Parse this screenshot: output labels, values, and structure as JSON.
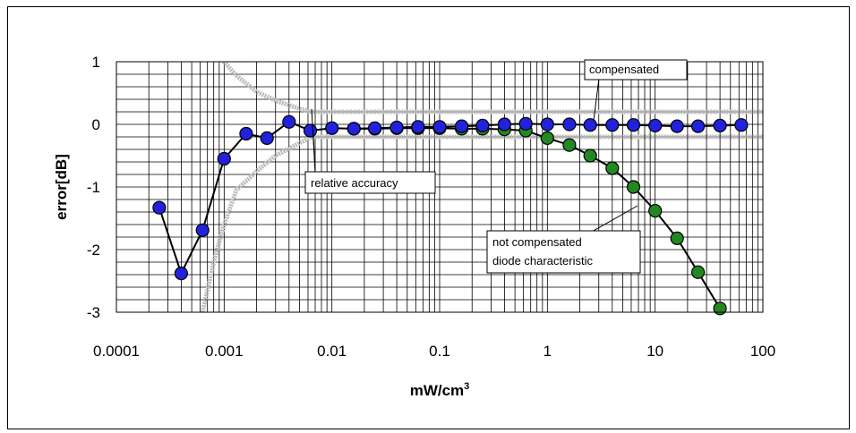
{
  "chart_data": {
    "type": "scatter",
    "x_scale": "log",
    "xlim": [
      0.0001,
      100
    ],
    "ylim": [
      -3,
      1
    ],
    "grid": true,
    "xlabel": "mW/cm",
    "xlabel_sup": "3",
    "ylabel": "error[dB]",
    "x_ticks": [
      {
        "value": 0.0001,
        "label": "0.0001"
      },
      {
        "value": 0.001,
        "label": "0.001"
      },
      {
        "value": 0.01,
        "label": "0.01"
      },
      {
        "value": 0.1,
        "label": "0.1"
      },
      {
        "value": 1,
        "label": "1"
      },
      {
        "value": 10,
        "label": "10"
      },
      {
        "value": 100,
        "label": "100"
      }
    ],
    "y_ticks": [
      {
        "value": 1,
        "label": "1"
      },
      {
        "value": 0,
        "label": "0"
      },
      {
        "value": -1,
        "label": "-1"
      },
      {
        "value": -2,
        "label": "-2"
      },
      {
        "value": -3,
        "label": "-3"
      }
    ],
    "annotations": {
      "compensated": "compensated",
      "relative_accuracy": "relative accuracy",
      "not_compensated_line1": "not compensated",
      "not_compensated_line2": "diode characteristic"
    },
    "series": [
      {
        "color": "#2222dd",
        "style": "line-marker",
        "points": [
          [
            0.00025,
            -1.33
          ],
          [
            0.0004,
            -2.38
          ],
          [
            0.00063,
            -1.69
          ],
          [
            0.001,
            -0.55
          ],
          [
            0.0016,
            -0.15
          ],
          [
            0.0025,
            -0.22
          ],
          [
            0.004,
            0.04
          ],
          [
            0.0063,
            -0.1
          ],
          [
            0.01,
            -0.06
          ],
          [
            0.016,
            -0.07
          ],
          [
            0.025,
            -0.06
          ],
          [
            0.04,
            -0.05
          ],
          [
            0.063,
            -0.04
          ],
          [
            0.1,
            -0.04
          ],
          [
            0.16,
            -0.03
          ],
          [
            0.25,
            -0.02
          ],
          [
            0.4,
            0.0
          ],
          [
            0.63,
            0.01
          ],
          [
            1,
            0.0
          ],
          [
            1.6,
            0.0
          ],
          [
            2.5,
            -0.01
          ],
          [
            4,
            -0.01
          ],
          [
            6.3,
            -0.01
          ],
          [
            10,
            -0.02
          ],
          [
            16,
            -0.03
          ],
          [
            25,
            -0.03
          ],
          [
            40,
            -0.02
          ],
          [
            63,
            -0.01
          ]
        ]
      },
      {
        "color": "#228822",
        "style": "line-marker",
        "points": [
          [
            0.016,
            -0.07
          ],
          [
            0.025,
            -0.07
          ],
          [
            0.04,
            -0.06
          ],
          [
            0.063,
            -0.06
          ],
          [
            0.1,
            -0.06
          ],
          [
            0.16,
            -0.07
          ],
          [
            0.25,
            -0.07
          ],
          [
            0.4,
            -0.08
          ],
          [
            0.63,
            -0.1
          ],
          [
            1,
            -0.22
          ],
          [
            1.6,
            -0.33
          ],
          [
            2.5,
            -0.5
          ],
          [
            4,
            -0.7
          ],
          [
            6.3,
            -1.0
          ],
          [
            10,
            -1.38
          ],
          [
            16,
            -1.82
          ],
          [
            25,
            -2.36
          ],
          [
            40,
            -2.94
          ]
        ]
      },
      {
        "color": "#bbbbbb",
        "style": "thick-line",
        "points": [
          [
            0.00088,
            1.1
          ],
          [
            0.0013,
            0.78
          ],
          [
            0.002,
            0.52
          ],
          [
            0.003,
            0.38
          ],
          [
            0.005,
            0.25
          ],
          [
            0.0065,
            0.2
          ],
          [
            100,
            0.2
          ]
        ]
      },
      {
        "color": "#bbbbbb",
        "style": "thick-line",
        "points": [
          [
            0.00063,
            -3.0
          ],
          [
            0.0008,
            -2.2
          ],
          [
            0.001,
            -1.6
          ],
          [
            0.0013,
            -1.05
          ],
          [
            0.002,
            -0.75
          ],
          [
            0.003,
            -0.5
          ],
          [
            0.005,
            -0.3
          ],
          [
            0.0065,
            -0.2
          ],
          [
            100,
            -0.2
          ]
        ]
      }
    ]
  }
}
